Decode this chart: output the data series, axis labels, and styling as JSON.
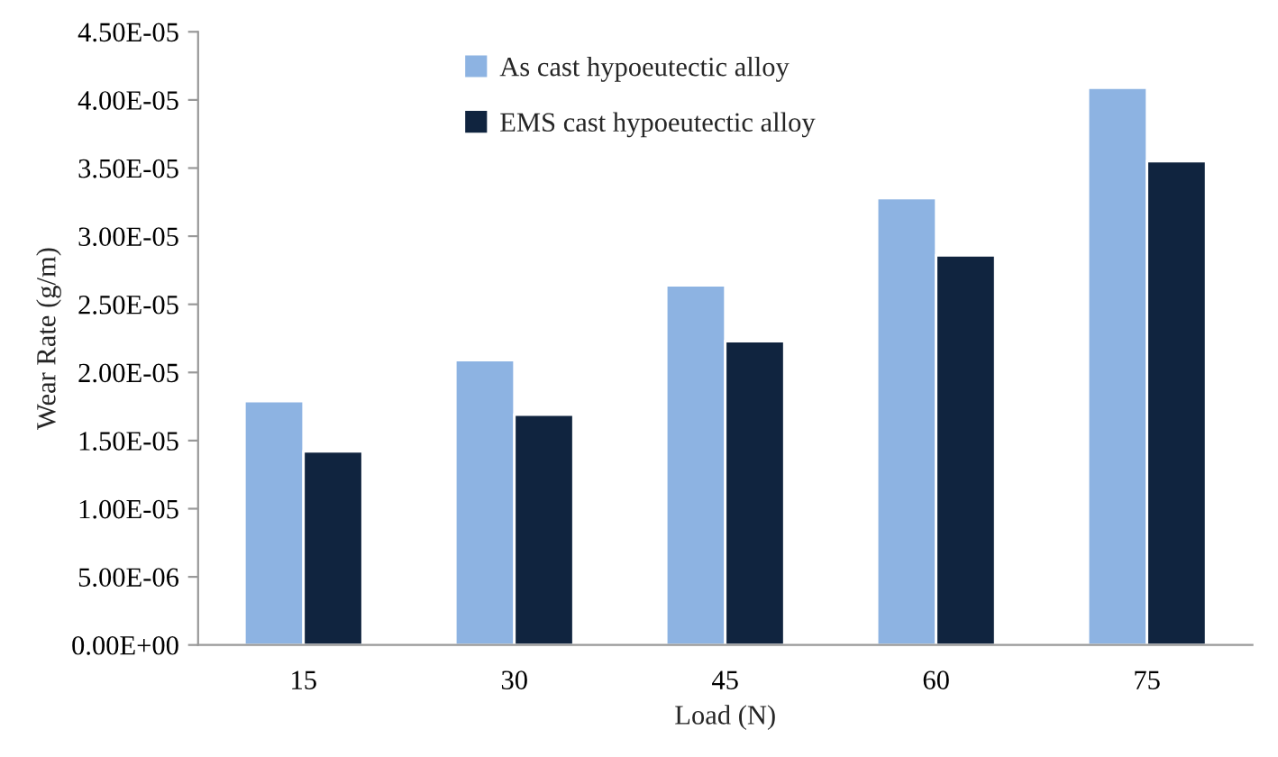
{
  "chart_data": {
    "type": "bar",
    "xlabel": "Load (N)",
    "ylabel": "Wear Rate (g/m)",
    "categories": [
      "15",
      "30",
      "45",
      "60",
      "75"
    ],
    "series": [
      {
        "name": "As cast hypoeutectic alloy",
        "color": "#8db3e2",
        "values": [
          1.79e-05,
          2.09e-05,
          2.64e-05,
          3.28e-05,
          4.09e-05
        ]
      },
      {
        "name": "EMS cast hypoeutectic alloy",
        "color": "#10243f",
        "values": [
          1.42e-05,
          1.69e-05,
          2.23e-05,
          2.86e-05,
          3.55e-05
        ]
      }
    ],
    "ylim": [
      0,
      4.5e-05
    ],
    "yticks": [
      {
        "value": 0,
        "label": "0.00E+00"
      },
      {
        "value": 5e-06,
        "label": "5.00E-06"
      },
      {
        "value": 1e-05,
        "label": "1.00E-05"
      },
      {
        "value": 1.5e-05,
        "label": "1.50E-05"
      },
      {
        "value": 2e-05,
        "label": "2.00E-05"
      },
      {
        "value": 2.5e-05,
        "label": "2.50E-05"
      },
      {
        "value": 3e-05,
        "label": "3.00E-05"
      },
      {
        "value": 3.5e-05,
        "label": "3.50E-05"
      },
      {
        "value": 4e-05,
        "label": "4.00E-05"
      },
      {
        "value": 4.5e-05,
        "label": "4.50E-05"
      }
    ],
    "grid": false,
    "legend": "top"
  }
}
